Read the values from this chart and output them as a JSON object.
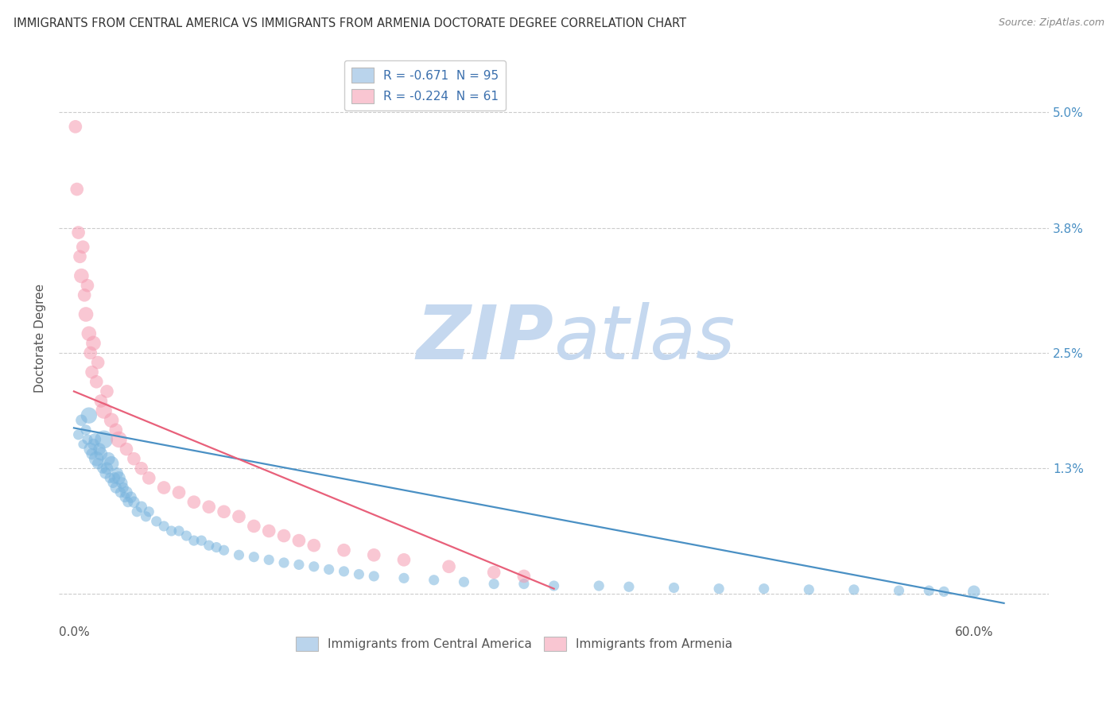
{
  "title": "IMMIGRANTS FROM CENTRAL AMERICA VS IMMIGRANTS FROM ARMENIA DOCTORATE DEGREE CORRELATION CHART",
  "source": "Source: ZipAtlas.com",
  "ylabel": "Doctorate Degree",
  "xlim": [
    -1.0,
    65.0
  ],
  "ylim": [
    -0.3,
    5.6
  ],
  "y_ticks": [
    0.0,
    1.3,
    2.5,
    3.8,
    5.0
  ],
  "y_tick_labels_right": [
    "",
    "1.3%",
    "2.5%",
    "3.8%",
    "5.0%"
  ],
  "x_ticks": [
    0,
    10,
    20,
    30,
    40,
    50,
    60
  ],
  "x_tick_labels": [
    "0.0%",
    "",
    "",
    "",
    "",
    "",
    "60.0%"
  ],
  "legend_blue_label": "R = -0.671  N = 95",
  "legend_pink_label": "R = -0.224  N = 61",
  "legend_blue_color": "#bad4ec",
  "legend_pink_color": "#f9c6d2",
  "blue_color": "#7ab5de",
  "pink_color": "#f59ab0",
  "trend_blue_color": "#4a90c4",
  "trend_pink_color": "#e8607a",
  "watermark_zip_color": "#c5d8ef",
  "watermark_atlas_color": "#c5d8ef",
  "blue_scatter_x": [
    0.3,
    0.5,
    0.6,
    0.8,
    0.9,
    1.0,
    1.1,
    1.2,
    1.3,
    1.4,
    1.5,
    1.6,
    1.7,
    1.8,
    1.9,
    2.0,
    2.1,
    2.2,
    2.3,
    2.4,
    2.5,
    2.6,
    2.7,
    2.8,
    2.9,
    3.0,
    3.1,
    3.2,
    3.3,
    3.4,
    3.5,
    3.6,
    3.8,
    4.0,
    4.2,
    4.5,
    4.8,
    5.0,
    5.5,
    6.0,
    6.5,
    7.0,
    7.5,
    8.0,
    8.5,
    9.0,
    9.5,
    10.0,
    11.0,
    12.0,
    13.0,
    14.0,
    15.0,
    16.0,
    17.0,
    18.0,
    19.0,
    20.0,
    22.0,
    24.0,
    26.0,
    28.0,
    30.0,
    32.0,
    35.0,
    37.0,
    40.0,
    43.0,
    46.0,
    49.0,
    52.0,
    55.0,
    57.0,
    58.0,
    60.0
  ],
  "blue_scatter_y": [
    1.65,
    1.8,
    1.55,
    1.7,
    1.6,
    1.85,
    1.5,
    1.45,
    1.55,
    1.6,
    1.4,
    1.35,
    1.5,
    1.45,
    1.3,
    1.6,
    1.25,
    1.3,
    1.4,
    1.2,
    1.35,
    1.15,
    1.2,
    1.1,
    1.25,
    1.2,
    1.05,
    1.15,
    1.1,
    1.0,
    1.05,
    0.95,
    1.0,
    0.95,
    0.85,
    0.9,
    0.8,
    0.85,
    0.75,
    0.7,
    0.65,
    0.65,
    0.6,
    0.55,
    0.55,
    0.5,
    0.48,
    0.45,
    0.4,
    0.38,
    0.35,
    0.32,
    0.3,
    0.28,
    0.25,
    0.23,
    0.2,
    0.18,
    0.16,
    0.14,
    0.12,
    0.1,
    0.1,
    0.08,
    0.08,
    0.07,
    0.06,
    0.05,
    0.05,
    0.04,
    0.04,
    0.03,
    0.03,
    0.02,
    0.02
  ],
  "blue_scatter_size": [
    50,
    60,
    40,
    50,
    50,
    120,
    80,
    60,
    60,
    70,
    100,
    60,
    70,
    80,
    50,
    150,
    60,
    70,
    80,
    50,
    100,
    50,
    60,
    60,
    60,
    80,
    50,
    60,
    50,
    50,
    70,
    50,
    60,
    60,
    50,
    60,
    50,
    50,
    50,
    50,
    50,
    50,
    50,
    50,
    50,
    50,
    50,
    50,
    50,
    50,
    50,
    50,
    50,
    50,
    50,
    50,
    50,
    50,
    50,
    50,
    50,
    50,
    50,
    50,
    50,
    50,
    50,
    50,
    50,
    50,
    50,
    50,
    50,
    50,
    70
  ],
  "pink_scatter_x": [
    0.1,
    0.2,
    0.3,
    0.4,
    0.5,
    0.6,
    0.7,
    0.8,
    0.9,
    1.0,
    1.1,
    1.2,
    1.3,
    1.5,
    1.6,
    1.8,
    2.0,
    2.2,
    2.5,
    2.8,
    3.0,
    3.5,
    4.0,
    4.5,
    5.0,
    6.0,
    7.0,
    8.0,
    9.0,
    10.0,
    11.0,
    12.0,
    13.0,
    14.0,
    15.0,
    16.0,
    18.0,
    20.0,
    22.0,
    25.0,
    28.0,
    30.0
  ],
  "pink_scatter_y": [
    4.85,
    4.2,
    3.75,
    3.5,
    3.3,
    3.6,
    3.1,
    2.9,
    3.2,
    2.7,
    2.5,
    2.3,
    2.6,
    2.2,
    2.4,
    2.0,
    1.9,
    2.1,
    1.8,
    1.7,
    1.6,
    1.5,
    1.4,
    1.3,
    1.2,
    1.1,
    1.05,
    0.95,
    0.9,
    0.85,
    0.8,
    0.7,
    0.65,
    0.6,
    0.55,
    0.5,
    0.45,
    0.4,
    0.35,
    0.28,
    0.22,
    0.18
  ],
  "pink_scatter_size": [
    80,
    80,
    80,
    80,
    100,
    80,
    80,
    100,
    80,
    100,
    80,
    80,
    100,
    80,
    80,
    80,
    120,
    80,
    100,
    80,
    120,
    80,
    80,
    80,
    80,
    80,
    80,
    80,
    80,
    80,
    80,
    80,
    80,
    80,
    80,
    80,
    80,
    80,
    80,
    80,
    80,
    80
  ],
  "blue_trend_x": [
    0.0,
    62.0
  ],
  "blue_trend_y": [
    1.72,
    -0.1
  ],
  "pink_trend_x": [
    0.0,
    32.0
  ],
  "pink_trend_y": [
    2.1,
    0.05
  ]
}
